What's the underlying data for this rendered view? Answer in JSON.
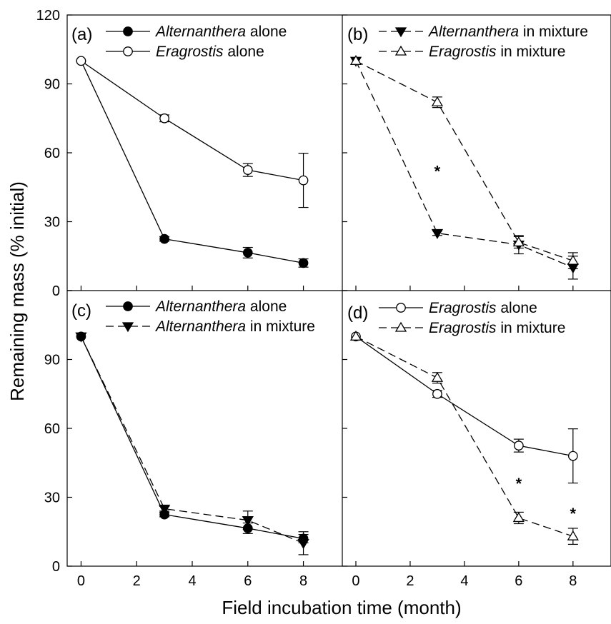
{
  "figure": {
    "ylabel": "Remaining mass (% initial)",
    "xlabel": "Field incubation time (month)",
    "x_ticks": [
      "0",
      "2",
      "4",
      "6",
      "8"
    ],
    "y_ticks": [
      "0",
      "30",
      "60",
      "90",
      "120"
    ]
  },
  "chart_data": [
    {
      "panel": "(a)",
      "type": "line",
      "position": "top-left",
      "xlim": [
        -0.5,
        9.4
      ],
      "ylim": [
        0,
        120
      ],
      "legend": "top-right",
      "series": [
        {
          "name": "Alternanthera alone",
          "name_italic": "Alternanthera",
          "name_rest": " alone",
          "marker": "circle-filled",
          "dash": "solid",
          "x": [
            0,
            3,
            6,
            8
          ],
          "y": [
            100,
            22.5,
            16.5,
            12
          ],
          "err": [
            0,
            1,
            2.3,
            1.8
          ]
        },
        {
          "name": "Eragrostis alone",
          "name_italic": "Eragrostis",
          "name_rest": " alone",
          "marker": "circle-open",
          "dash": "solid",
          "x": [
            0,
            3,
            6,
            8
          ],
          "y": [
            100,
            75,
            52.5,
            48
          ],
          "err": [
            0,
            1.5,
            2.8,
            11.8
          ]
        }
      ],
      "annotations": []
    },
    {
      "panel": "(b)",
      "type": "line",
      "position": "top-right",
      "xlim": [
        -0.5,
        9.4
      ],
      "ylim": [
        0,
        120
      ],
      "legend": "top-right",
      "series": [
        {
          "name": "Alternanthera in mixture",
          "name_italic": "Alternanthera",
          "name_rest": " in mixture",
          "marker": "triangle-down-filled",
          "dash": "dashed",
          "x": [
            0,
            3,
            6,
            8
          ],
          "y": [
            100,
            25,
            20,
            10
          ],
          "err": [
            0,
            1,
            4,
            5
          ]
        },
        {
          "name": "Eragrostis in mixture",
          "name_italic": "Eragrostis",
          "name_rest": " in mixture",
          "marker": "triangle-up-open",
          "dash": "dashed",
          "x": [
            0,
            3,
            6,
            8
          ],
          "y": [
            100,
            82,
            21,
            13
          ],
          "err": [
            0,
            2.3,
            2.5,
            3.5
          ]
        }
      ],
      "annotations": [
        {
          "text": "*",
          "x": 3,
          "y": 52
        }
      ]
    },
    {
      "panel": "(c)",
      "type": "line",
      "position": "bottom-left",
      "xlim": [
        -0.5,
        9.4
      ],
      "ylim": [
        0,
        120
      ],
      "legend": "top-right",
      "series": [
        {
          "name": "Alternanthera alone",
          "name_italic": "Alternanthera",
          "name_rest": " alone",
          "marker": "circle-filled",
          "dash": "solid",
          "x": [
            0,
            3,
            6,
            8
          ],
          "y": [
            100,
            22.5,
            16.5,
            12
          ],
          "err": [
            0,
            1,
            2.3,
            1.8
          ]
        },
        {
          "name": "Alternanthera in mixture",
          "name_italic": "Alternanthera",
          "name_rest": " in mixture",
          "marker": "triangle-down-filled",
          "dash": "dashed",
          "x": [
            0,
            3,
            6,
            8
          ],
          "y": [
            100,
            25,
            20,
            10
          ],
          "err": [
            0,
            1,
            4,
            5
          ]
        }
      ],
      "annotations": []
    },
    {
      "panel": "(d)",
      "type": "line",
      "position": "bottom-right",
      "xlim": [
        -0.5,
        9.4
      ],
      "ylim": [
        0,
        120
      ],
      "legend": "top-right",
      "series": [
        {
          "name": "Eragrostis alone",
          "name_italic": "Eragrostis",
          "name_rest": " alone",
          "marker": "circle-open",
          "dash": "solid",
          "x": [
            0,
            3,
            6,
            8
          ],
          "y": [
            100,
            75,
            52.5,
            48
          ],
          "err": [
            0,
            1.5,
            2.8,
            11.8
          ]
        },
        {
          "name": "Eragrostis in mixture",
          "name_italic": "Eragrostis",
          "name_rest": " in mixture",
          "marker": "triangle-up-open",
          "dash": "dashed",
          "x": [
            0,
            3,
            6,
            8
          ],
          "y": [
            100,
            82,
            21,
            13
          ],
          "err": [
            0,
            2.3,
            2.5,
            3.5
          ]
        }
      ],
      "annotations": [
        {
          "text": "*",
          "x": 6,
          "y": 36
        },
        {
          "text": "*",
          "x": 8,
          "y": 23
        }
      ]
    }
  ]
}
